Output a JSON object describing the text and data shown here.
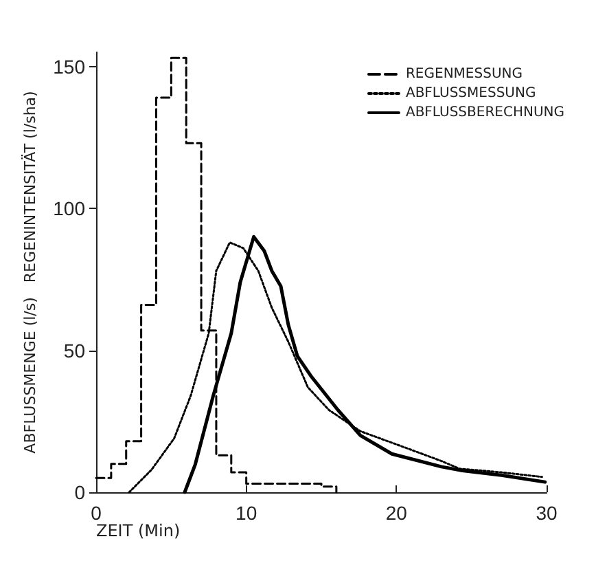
{
  "chart_data": {
    "type": "line",
    "xlabel": "ZEIT (Min)",
    "ylabel": "ABFLUSSMENGE (l/s)   REGENINTENSITÄT (l/sha)",
    "xlim": [
      0,
      30
    ],
    "xticks": [
      0,
      10,
      20,
      30
    ],
    "ylim": [
      0,
      155
    ],
    "yticks": [
      0,
      50,
      100,
      150
    ],
    "grid": false,
    "legend": "top right",
    "marker": "none",
    "series": [
      {
        "name": "REGENMESSUNG",
        "type": "step",
        "line_style": "dashed",
        "color": "#000000",
        "x": [
          0,
          1,
          2,
          3,
          4,
          5,
          6,
          7,
          8,
          9,
          10,
          11,
          12,
          13,
          14,
          15,
          16
        ],
        "values": [
          5,
          10,
          18,
          66,
          139,
          153,
          123,
          57,
          13,
          7,
          3,
          3,
          3,
          3,
          3,
          2,
          0
        ]
      },
      {
        "name": "ABFLUSSMESSUNG",
        "type": "line",
        "line_style": "dotted",
        "color": "#000000",
        "x": [
          2.2,
          3.7,
          5.2,
          6.3,
          7.5,
          8,
          8.9,
          9.8,
          10.8,
          11.7,
          12.8,
          14.1,
          15.5,
          17.6,
          20.6,
          23,
          24.2,
          27,
          29.7
        ],
        "values": [
          0,
          8,
          19,
          34,
          56,
          78,
          88,
          86,
          78,
          65,
          53,
          37,
          29,
          21.5,
          15.7,
          11,
          8.3,
          7,
          5.4
        ]
      },
      {
        "name": "ABFLUSSBERECHNUNG",
        "type": "line",
        "line_style": "solid",
        "color": "#000000",
        "x": [
          5.9,
          6.6,
          7.8,
          9,
          9.6,
          10.5,
          11.2,
          11.7,
          12.3,
          12.8,
          13.4,
          14.3,
          14.9,
          16.1,
          17.6,
          19.7,
          23,
          24.4,
          27,
          29.9
        ],
        "values": [
          0,
          9.8,
          34,
          56,
          74,
          90,
          85,
          78,
          72.6,
          59,
          48,
          41,
          37,
          29,
          20,
          13.5,
          9,
          7.6,
          6,
          3.6
        ]
      }
    ]
  }
}
